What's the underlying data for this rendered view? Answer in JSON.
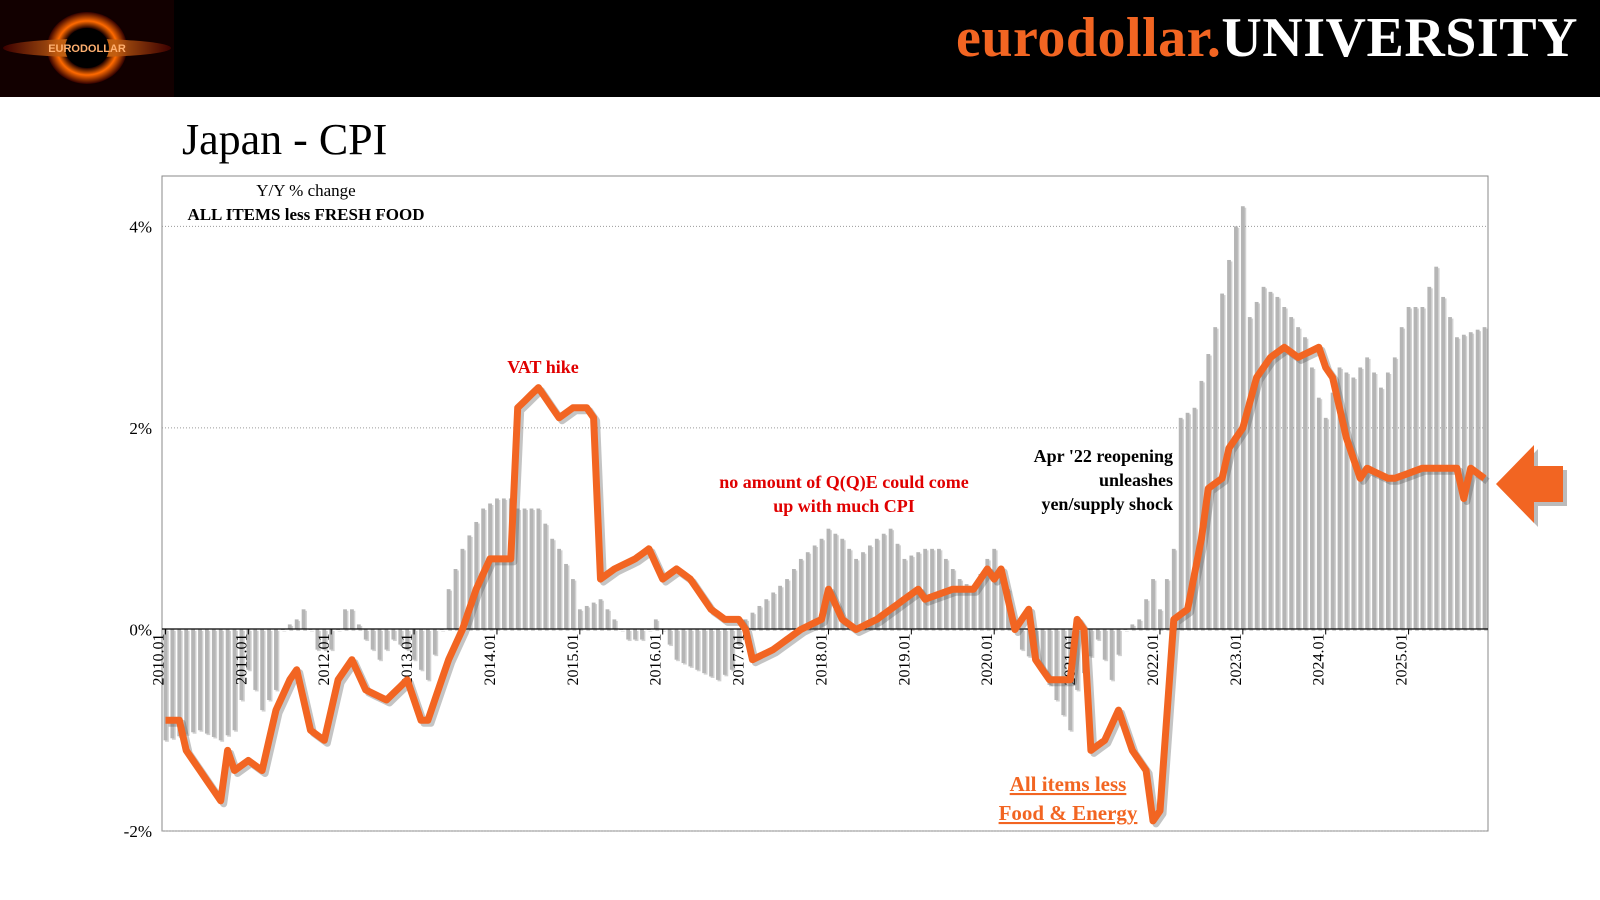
{
  "header": {
    "brand_part1": "eurodollar.",
    "brand_part2": "UNIVERSITY",
    "logo_text": "EURODOLLAR",
    "colors": {
      "background": "#000000",
      "brand_orange": "#f26522",
      "brand_white": "#ffffff"
    }
  },
  "page": {
    "title": "Japan - CPI"
  },
  "chart_data": {
    "type": "bar+line",
    "title": "Japan - CPI",
    "subtitle": "Y/Y % change",
    "series_label": "ALL ITEMS less FRESH FOOD",
    "ylim": [
      -2,
      4.5
    ],
    "yticks": [
      -2,
      0,
      2,
      4
    ],
    "ytick_labels": [
      "-2%",
      "0%",
      "2%",
      "4%"
    ],
    "x_start": "2010.01",
    "x_end": "2025.12",
    "xtick_labels": [
      "2010.01",
      "2011.01",
      "2012.01",
      "2013.01",
      "2014.01",
      "2015.01",
      "2016.01",
      "2017.01",
      "2018.01",
      "2019.01",
      "2020.01",
      "2021.01",
      "2022.01",
      "2023.01",
      "2024.01",
      "2025.01"
    ],
    "grid": "horizontal dotted",
    "series": [
      {
        "name": "ALL ITEMS less FRESH FOOD",
        "type": "bar",
        "color": "#b5b5b5",
        "anchors": [
          [
            "2010.01",
            -1.1
          ],
          [
            "2010.06",
            -1.0
          ],
          [
            "2010.09",
            -1.1
          ],
          [
            "2010.11",
            -1.0
          ],
          [
            "2011.01",
            -0.4
          ],
          [
            "2011.03",
            -0.8
          ],
          [
            "2011.05",
            -0.6
          ],
          [
            "2011.06",
            0.0
          ],
          [
            "2011.08",
            0.1
          ],
          [
            "2011.09",
            0.2
          ],
          [
            "2011.10",
            0.0
          ],
          [
            "2011.11",
            -0.2
          ],
          [
            "2012.01",
            -0.2
          ],
          [
            "2012.03",
            0.2
          ],
          [
            "2012.04",
            0.2
          ],
          [
            "2012.06",
            -0.1
          ],
          [
            "2012.08",
            -0.3
          ],
          [
            "2012.10",
            -0.1
          ],
          [
            "2012.12",
            -0.2
          ],
          [
            "2013.03",
            -0.5
          ],
          [
            "2013.05",
            0.0
          ],
          [
            "2013.06",
            0.4
          ],
          [
            "2013.08",
            0.8
          ],
          [
            "2013.11",
            1.2
          ],
          [
            "2014.01",
            1.3
          ],
          [
            "2014.02",
            1.3
          ],
          [
            "2014.03",
            1.3
          ],
          [
            "2014.04",
            1.2
          ],
          [
            "2014.07",
            1.2
          ],
          [
            "2014.09",
            0.9
          ],
          [
            "2014.10",
            0.8
          ],
          [
            "2014.12",
            0.5
          ],
          [
            "2015.01",
            0.2
          ],
          [
            "2015.04",
            0.3
          ],
          [
            "2015.06",
            0.1
          ],
          [
            "2015.08",
            -0.1
          ],
          [
            "2015.10",
            -0.1
          ],
          [
            "2015.12",
            0.1
          ],
          [
            "2016.01",
            0.0
          ],
          [
            "2016.03",
            -0.3
          ],
          [
            "2016.06",
            -0.4
          ],
          [
            "2016.09",
            -0.5
          ],
          [
            "2016.11",
            -0.4
          ],
          [
            "2017.01",
            0.1
          ],
          [
            "2017.04",
            0.3
          ],
          [
            "2017.07",
            0.5
          ],
          [
            "2017.09",
            0.7
          ],
          [
            "2017.12",
            0.9
          ],
          [
            "2018.01",
            1.0
          ],
          [
            "2018.03",
            0.9
          ],
          [
            "2018.05",
            0.7
          ],
          [
            "2018.08",
            0.9
          ],
          [
            "2018.10",
            1.0
          ],
          [
            "2018.12",
            0.7
          ],
          [
            "2019.03",
            0.8
          ],
          [
            "2019.05",
            0.8
          ],
          [
            "2019.08",
            0.5
          ],
          [
            "2019.10",
            0.4
          ],
          [
            "2019.12",
            0.7
          ],
          [
            "2020.01",
            0.8
          ],
          [
            "2020.03",
            0.4
          ],
          [
            "2020.05",
            -0.2
          ],
          [
            "2020.08",
            -0.4
          ],
          [
            "2020.10",
            -0.7
          ],
          [
            "2020.12",
            -1.0
          ],
          [
            "2021.01",
            -0.6
          ],
          [
            "2021.04",
            -0.1
          ],
          [
            "2021.06",
            -0.5
          ],
          [
            "2021.08",
            0.0
          ],
          [
            "2021.10",
            0.1
          ],
          [
            "2021.12",
            0.5
          ],
          [
            "2022.01",
            0.2
          ],
          [
            "2022.03",
            0.8
          ],
          [
            "2022.04",
            2.1
          ],
          [
            "2022.06",
            2.2
          ],
          [
            "2022.09",
            3.0
          ],
          [
            "2022.12",
            4.0
          ],
          [
            "2023.01",
            4.2
          ],
          [
            "2023.02",
            3.1
          ],
          [
            "2023.04",
            3.4
          ],
          [
            "2023.06",
            3.3
          ],
          [
            "2023.08",
            3.1
          ],
          [
            "2023.10",
            2.9
          ],
          [
            "2023.12",
            2.3
          ],
          [
            "2024.01",
            2.1
          ],
          [
            "2024.03",
            2.6
          ],
          [
            "2024.05",
            2.5
          ],
          [
            "2024.07",
            2.7
          ],
          [
            "2024.09",
            2.4
          ],
          [
            "2024.11",
            2.7
          ],
          [
            "2024.12",
            3.0
          ],
          [
            "2025.01",
            3.2
          ],
          [
            "2025.03",
            3.2
          ],
          [
            "2025.05",
            3.6
          ],
          [
            "2025.06",
            3.3
          ],
          [
            "2025.08",
            2.9
          ],
          [
            "2025.12",
            3.0
          ]
        ]
      },
      {
        "name": "All items less Food & Energy",
        "type": "line",
        "color": "#f26522",
        "anchors": [
          [
            "2010.01",
            -0.9
          ],
          [
            "2010.03",
            -0.9
          ],
          [
            "2010.04",
            -1.2
          ],
          [
            "2010.07",
            -1.5
          ],
          [
            "2010.09",
            -1.7
          ],
          [
            "2010.10",
            -1.2
          ],
          [
            "2010.11",
            -1.4
          ],
          [
            "2011.01",
            -1.3
          ],
          [
            "2011.03",
            -1.4
          ],
          [
            "2011.05",
            -0.8
          ],
          [
            "2011.07",
            -0.5
          ],
          [
            "2011.08",
            -0.4
          ],
          [
            "2011.10",
            -1.0
          ],
          [
            "2011.12",
            -1.1
          ],
          [
            "2012.02",
            -0.5
          ],
          [
            "2012.04",
            -0.3
          ],
          [
            "2012.06",
            -0.6
          ],
          [
            "2012.09",
            -0.7
          ],
          [
            "2012.12",
            -0.5
          ],
          [
            "2013.02",
            -0.9
          ],
          [
            "2013.03",
            -0.9
          ],
          [
            "2013.06",
            -0.3
          ],
          [
            "2013.08",
            0.0
          ],
          [
            "2013.10",
            0.4
          ],
          [
            "2013.12",
            0.7
          ],
          [
            "2014.03",
            0.7
          ],
          [
            "2014.04",
            2.2
          ],
          [
            "2014.07",
            2.4
          ],
          [
            "2014.09",
            2.2
          ],
          [
            "2014.10",
            2.1
          ],
          [
            "2014.12",
            2.2
          ],
          [
            "2015.02",
            2.2
          ],
          [
            "2015.03",
            2.1
          ],
          [
            "2015.04",
            0.5
          ],
          [
            "2015.06",
            0.6
          ],
          [
            "2015.09",
            0.7
          ],
          [
            "2015.11",
            0.8
          ],
          [
            "2016.01",
            0.5
          ],
          [
            "2016.03",
            0.6
          ],
          [
            "2016.05",
            0.5
          ],
          [
            "2016.08",
            0.2
          ],
          [
            "2016.10",
            0.1
          ],
          [
            "2016.12",
            0.1
          ],
          [
            "2017.01",
            0.0
          ],
          [
            "2017.02",
            -0.3
          ],
          [
            "2017.05",
            -0.2
          ],
          [
            "2017.09",
            0.0
          ],
          [
            "2017.12",
            0.1
          ],
          [
            "2018.01",
            0.4
          ],
          [
            "2018.03",
            0.1
          ],
          [
            "2018.05",
            0.0
          ],
          [
            "2018.08",
            0.1
          ],
          [
            "2018.12",
            0.3
          ],
          [
            "2019.02",
            0.4
          ],
          [
            "2019.03",
            0.3
          ],
          [
            "2019.07",
            0.4
          ],
          [
            "2019.10",
            0.4
          ],
          [
            "2019.12",
            0.6
          ],
          [
            "2020.01",
            0.5
          ],
          [
            "2020.02",
            0.6
          ],
          [
            "2020.03",
            0.3
          ],
          [
            "2020.04",
            0.0
          ],
          [
            "2020.06",
            0.2
          ],
          [
            "2020.07",
            -0.3
          ],
          [
            "2020.09",
            -0.5
          ],
          [
            "2020.12",
            -0.5
          ],
          [
            "2021.01",
            0.1
          ],
          [
            "2021.02",
            0.0
          ],
          [
            "2021.03",
            -1.2
          ],
          [
            "2021.05",
            -1.1
          ],
          [
            "2021.07",
            -0.8
          ],
          [
            "2021.09",
            -1.2
          ],
          [
            "2021.11",
            -1.4
          ],
          [
            "2021.12",
            -1.9
          ],
          [
            "2022.01",
            -1.8
          ],
          [
            "2022.03",
            0.1
          ],
          [
            "2022.05",
            0.2
          ],
          [
            "2022.07",
            0.9
          ],
          [
            "2022.08",
            1.4
          ],
          [
            "2022.10",
            1.5
          ],
          [
            "2022.11",
            1.8
          ],
          [
            "2023.01",
            2.0
          ],
          [
            "2023.03",
            2.5
          ],
          [
            "2023.05",
            2.7
          ],
          [
            "2023.07",
            2.8
          ],
          [
            "2023.09",
            2.7
          ],
          [
            "2023.12",
            2.8
          ],
          [
            "2024.01",
            2.6
          ],
          [
            "2024.02",
            2.5
          ],
          [
            "2024.04",
            1.9
          ],
          [
            "2024.06",
            1.5
          ],
          [
            "2024.07",
            1.6
          ],
          [
            "2024.10",
            1.5
          ],
          [
            "2024.11",
            1.5
          ],
          [
            "2025.03",
            1.6
          ],
          [
            "2025.06",
            1.6
          ],
          [
            "2025.08",
            1.6
          ],
          [
            "2025.09",
            1.3
          ],
          [
            "2025.10",
            1.6
          ],
          [
            "2025.12",
            1.5
          ]
        ]
      }
    ],
    "annotations": [
      {
        "key": "vat",
        "text": "VAT hike",
        "color": "#e00000"
      },
      {
        "key": "qqe",
        "lines": [
          "no amount of Q(Q)E could come",
          "up with much CPI"
        ],
        "color": "#e00000"
      },
      {
        "key": "reopen",
        "lines": [
          "Apr '22 reopening",
          "unleashes",
          "yen/supply shock"
        ],
        "color": "#000000"
      },
      {
        "key": "line_label",
        "lines": [
          "All items less",
          "Food & Energy"
        ],
        "color": "#f26522",
        "underline": true
      }
    ],
    "highlight_arrow": {
      "color": "#f26522",
      "points_to": "latest value"
    }
  }
}
